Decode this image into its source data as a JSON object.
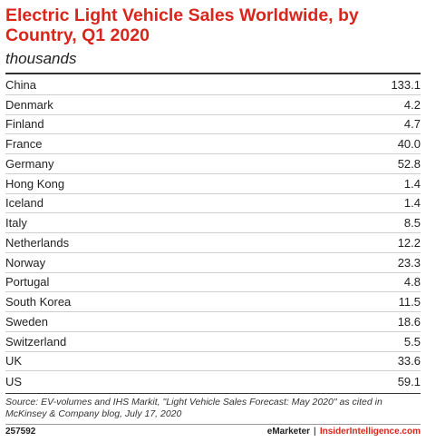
{
  "chart_data": {
    "type": "table",
    "title": "Electric Light Vehicle Sales Worldwide, by Country, Q1 2020",
    "subtitle": "thousands",
    "rows": [
      {
        "label": "China",
        "value": "133.1"
      },
      {
        "label": "Denmark",
        "value": "4.2"
      },
      {
        "label": "Finland",
        "value": "4.7"
      },
      {
        "label": "France",
        "value": "40.0"
      },
      {
        "label": "Germany",
        "value": "52.8"
      },
      {
        "label": "Hong Kong",
        "value": "1.4"
      },
      {
        "label": "Iceland",
        "value": "1.4"
      },
      {
        "label": "Italy",
        "value": "8.5"
      },
      {
        "label": "Netherlands",
        "value": "12.2"
      },
      {
        "label": "Norway",
        "value": "23.3"
      },
      {
        "label": "Portugal",
        "value": "4.8"
      },
      {
        "label": "South Korea",
        "value": "11.5"
      },
      {
        "label": "Sweden",
        "value": "18.6"
      },
      {
        "label": "Switzerland",
        "value": "5.5"
      },
      {
        "label": "UK",
        "value": "33.6"
      },
      {
        "label": "US",
        "value": "59.1"
      }
    ]
  },
  "source": "Source: EV-volumes and IHS Markit, \"Light Vehicle Sales Forecast: May 2020\" as cited in McKinsey & Company blog, July 17, 2020",
  "footer": {
    "chart_id": "257592",
    "brand": "eMarketer",
    "separator": "|",
    "brand2": "InsiderIntelligence.com"
  },
  "colors": {
    "title": "#d9261c",
    "brand2": "#d9261c"
  }
}
